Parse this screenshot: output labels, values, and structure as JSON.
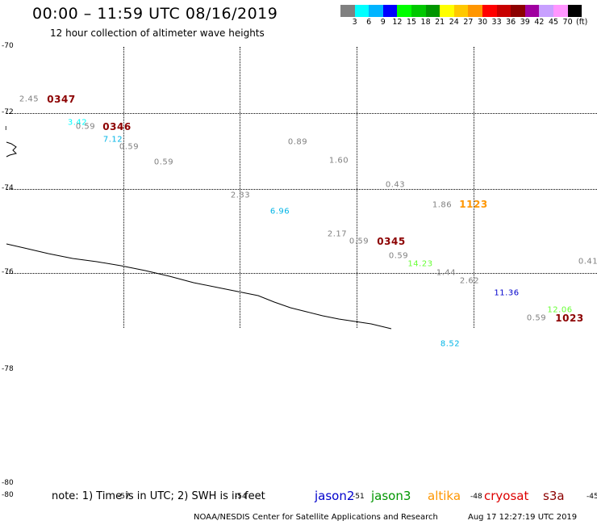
{
  "header": {
    "title": "00:00 – 11:59 UTC 08/16/2019",
    "subtitle": "12 hour collection of altimeter wave heights"
  },
  "colorbar": {
    "colors": [
      "#808080",
      "#00ffff",
      "#00b4ff",
      "#0000ff",
      "#00ff00",
      "#00c800",
      "#009600",
      "#ffff00",
      "#ffc800",
      "#ff9600",
      "#ff0000",
      "#c80000",
      "#8c0000",
      "#a000a0",
      "#c8a0ff",
      "#ff96ff",
      "#000000"
    ],
    "labels": [
      "3",
      "6",
      "9",
      "12",
      "15",
      "18",
      "21",
      "24",
      "27",
      "30",
      "33",
      "36",
      "39",
      "42",
      "45",
      "70",
      "(ft)"
    ]
  },
  "axes": {
    "lat_labels": [
      "-70",
      "-72",
      "-74",
      "-76",
      "-78",
      "-80",
      "-80"
    ],
    "lon_labels": [
      "-57",
      "-54",
      "-51",
      "-48",
      "-45"
    ]
  },
  "observations": [
    {
      "text": "2.45",
      "color": "#808080"
    },
    {
      "text": "3.42",
      "color": "#00ffff"
    },
    {
      "text": "0.59",
      "color": "#808080"
    },
    {
      "text": "7.12",
      "color": "#00b4e6"
    },
    {
      "text": "0.59",
      "color": "#808080"
    },
    {
      "text": "0.59",
      "color": "#808080"
    },
    {
      "text": "0.89",
      "color": "#808080"
    },
    {
      "text": "1.60",
      "color": "#808080"
    },
    {
      "text": "2.33",
      "color": "#808080"
    },
    {
      "text": "6.96",
      "color": "#00b4e6"
    },
    {
      "text": "0.43",
      "color": "#808080"
    },
    {
      "text": "1.86",
      "color": "#808080"
    },
    {
      "text": "2.17",
      "color": "#808080"
    },
    {
      "text": "0.59",
      "color": "#808080"
    },
    {
      "text": "0.59",
      "color": "#808080"
    },
    {
      "text": "14.23",
      "color": "#66ff33"
    },
    {
      "text": "1.44",
      "color": "#808080"
    },
    {
      "text": "2.62",
      "color": "#808080"
    },
    {
      "text": "11.36",
      "color": "#0000cc"
    },
    {
      "text": "0.41",
      "color": "#808080"
    },
    {
      "text": "12.06",
      "color": "#66ff33"
    },
    {
      "text": "0.59",
      "color": "#808080"
    },
    {
      "text": "8.52",
      "color": "#00b4e6"
    }
  ],
  "pass_times": [
    {
      "text": "0347",
      "color": "#8c0000"
    },
    {
      "text": "0346",
      "color": "#8c0000"
    },
    {
      "text": "1123",
      "color": "#ff9600"
    },
    {
      "text": "0345",
      "color": "#8c0000"
    },
    {
      "text": "1023",
      "color": "#8c0000"
    }
  ],
  "footer": {
    "note": "note: 1) Time is in UTC; 2) SWH is in feet",
    "satellites": [
      {
        "name": "jason2",
        "color": "#0000cc"
      },
      {
        "name": "jason3",
        "color": "#009600"
      },
      {
        "name": "altika",
        "color": "#ff9600"
      },
      {
        "name": "cryosat",
        "color": "#dd0000"
      },
      {
        "name": "s3a",
        "color": "#8c0000"
      }
    ],
    "credit": "NOAA/NESDIS Center for Satellite Applications and Research",
    "timestamp": "Aug 17 12:27:19 UTC 2019"
  }
}
